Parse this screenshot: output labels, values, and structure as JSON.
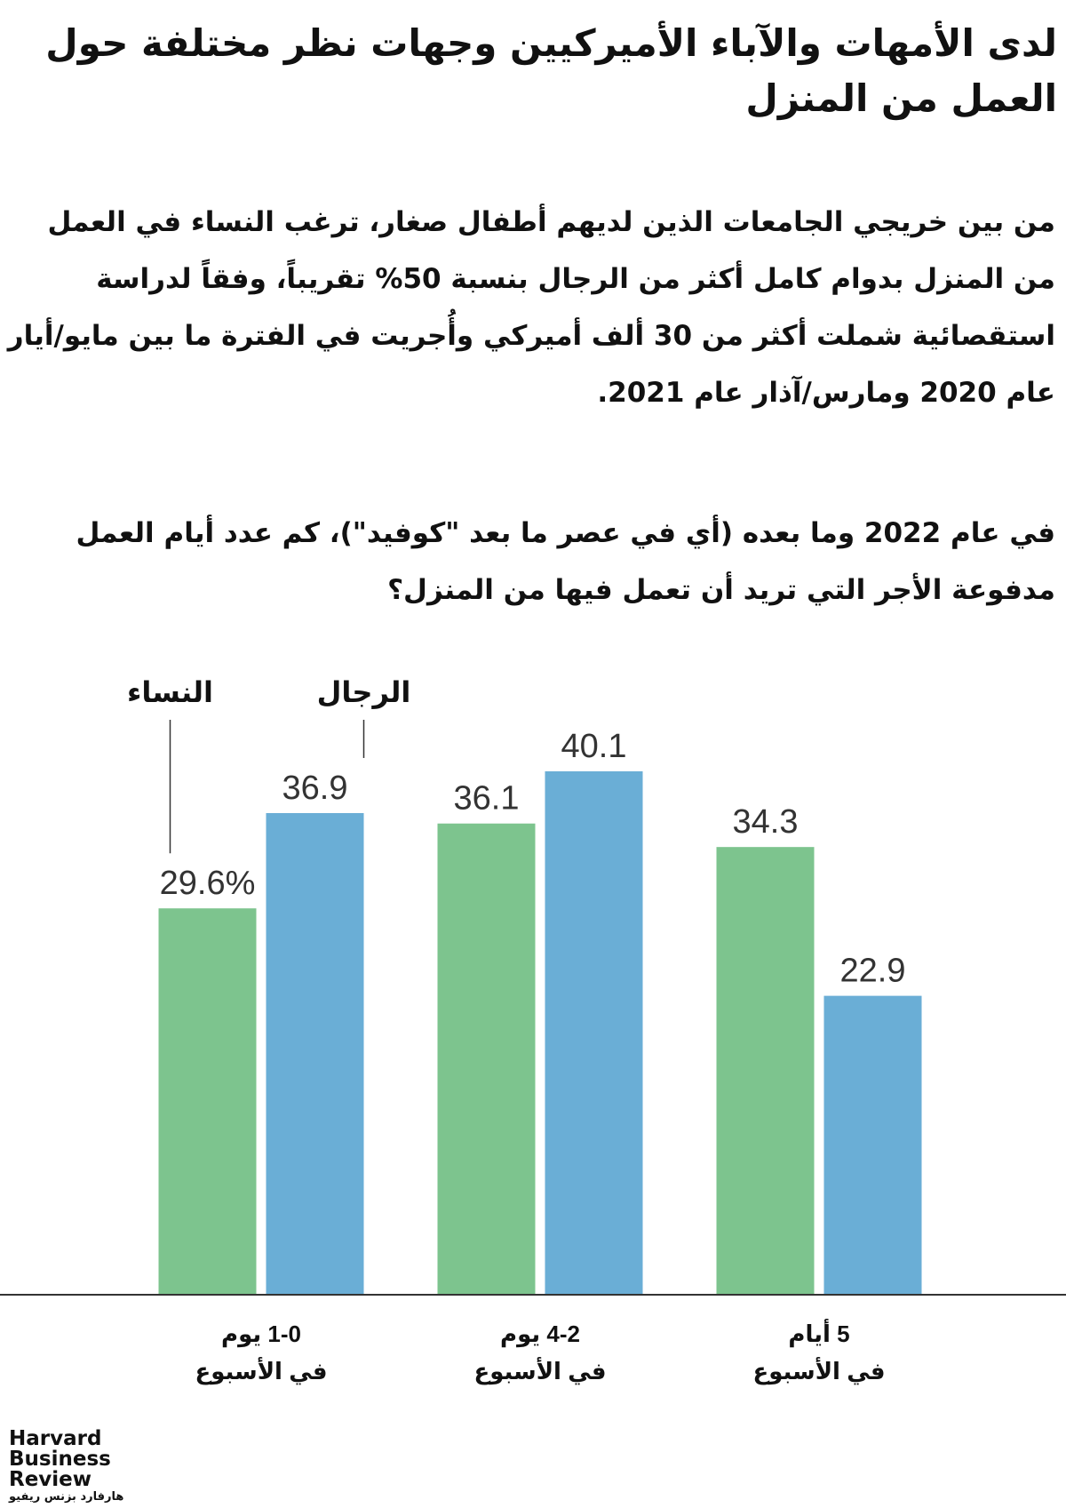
{
  "chart_data": {
    "type": "bar",
    "title": "لدى الأمهات والآباء الأميركيين وجهات نظر مختلفة حول العمل من المنزل",
    "subtitle": "من بين خريجي الجامعات الذين لديهم أطفال صغار، ترغب النساء في العمل من المنزل بدوام كامل أكثر من الرجال بنسبة 50% تقريباً، وفقاً لدراسة استقصائية شملت أكثر من 30 ألف أميركي وأُجريت في الفترة ما بين مايو/أيار عام 2020 ومارس/آذار عام 2021.",
    "question": "في عام 2022 وما بعده (أي في عصر ما بعد \"كوفيد\")، كم عدد أيام العمل مدفوعة الأجر التي تريد أن تعمل فيها من المنزل؟",
    "categories": [
      [
        "1-0 يوم",
        "في الأسبوع"
      ],
      [
        "4-2 يوم",
        "في الأسبوع"
      ],
      [
        "5 أيام",
        "في الأسبوع"
      ]
    ],
    "series": [
      {
        "name": "النساء",
        "color": "#7dc48e",
        "values": [
          29.6,
          36.1,
          34.3
        ],
        "value_labels": [
          "29.6%",
          "36.1",
          "34.3"
        ]
      },
      {
        "name": "الرجال",
        "color": "#6aaed6",
        "values": [
          36.9,
          40.1,
          22.9
        ]
      }
    ],
    "ylim": [
      0,
      45
    ],
    "source_logo": [
      "Harvard",
      "Business",
      "Review"
    ],
    "source_logo_arabic": "هارفارد بزنس ريفيو"
  }
}
